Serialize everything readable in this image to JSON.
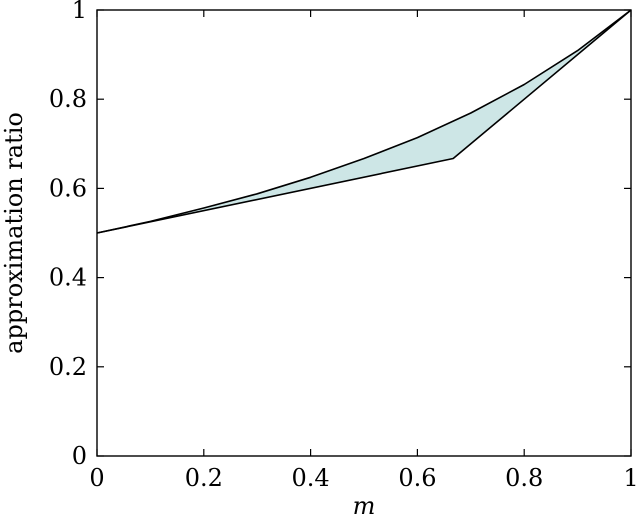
{
  "chart_data": {
    "type": "area",
    "title": "",
    "xlabel": "m",
    "ylabel": "approximation ratio",
    "xlim": [
      0,
      1
    ],
    "ylim": [
      0,
      1
    ],
    "xticks": [
      0,
      0.2,
      0.4,
      0.6,
      0.8,
      1
    ],
    "yticks": [
      0,
      0.2,
      0.4,
      0.6,
      0.8,
      1
    ],
    "xtick_labels": [
      "0",
      "0.2",
      "0.4",
      "0.6",
      "0.8",
      "1"
    ],
    "ytick_labels": [
      "0",
      "0.2",
      "0.4",
      "0.6",
      "0.8",
      "1"
    ],
    "grid": false,
    "fill_color": "#cde6e6",
    "line_color": "#000000",
    "series": [
      {
        "x": [
          0,
          0.1,
          0.2,
          0.3,
          0.4,
          0.5,
          0.6,
          0.7,
          0.8,
          0.9,
          1.0
        ],
        "y": [
          0.5,
          0.526,
          0.556,
          0.588,
          0.625,
          0.667,
          0.714,
          0.769,
          0.833,
          0.909,
          1.0
        ]
      },
      {
        "x": [
          0,
          0.667,
          1.0
        ],
        "y": [
          0.5,
          0.667,
          1.0
        ]
      }
    ]
  }
}
